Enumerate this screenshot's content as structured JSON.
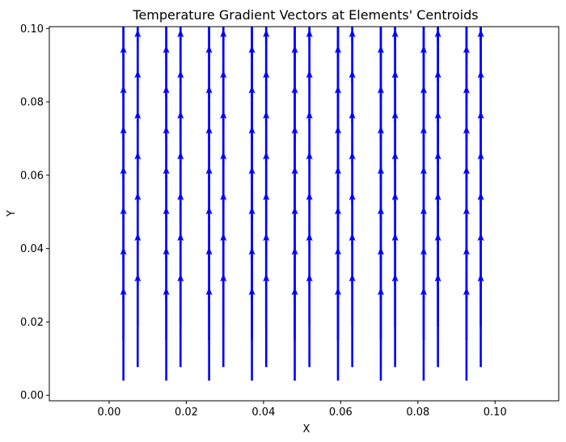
{
  "chart_data": {
    "type": "quiver",
    "title": "Temperature Gradient Vectors at Elements' Centroids",
    "xlabel": "X",
    "ylabel": "Y",
    "xlim": [
      -0.0155,
      0.1165
    ],
    "ylim": [
      -0.0015,
      0.1005
    ],
    "xticks": [
      "0.00",
      "0.02",
      "0.04",
      "0.06",
      "0.08",
      "0.10"
    ],
    "xtick_values": [
      0.0,
      0.02,
      0.04,
      0.06,
      0.08,
      0.1
    ],
    "yticks": [
      "0.00",
      "0.02",
      "0.04",
      "0.06",
      "0.08",
      "0.10"
    ],
    "ytick_values": [
      0.0,
      0.02,
      0.04,
      0.06,
      0.08,
      0.1
    ],
    "grid": false,
    "color": "#0000ff",
    "direction": "+y",
    "columns_a": {
      "x": [
        0.0037,
        0.0148,
        0.0259,
        0.037,
        0.0481,
        0.0593,
        0.0704,
        0.0815,
        0.0926
      ],
      "y": [
        0.004,
        0.015,
        0.026,
        0.037,
        0.048,
        0.059,
        0.07,
        0.081,
        0.092
      ]
    },
    "columns_b": {
      "x": [
        0.0074,
        0.0185,
        0.0296,
        0.0407,
        0.0519,
        0.063,
        0.0741,
        0.0852,
        0.0963
      ],
      "y": [
        0.0077,
        0.0188,
        0.0299,
        0.041,
        0.0521,
        0.0632,
        0.0743,
        0.0854,
        0.0965
      ]
    },
    "arrow_length": 0.0255
  }
}
